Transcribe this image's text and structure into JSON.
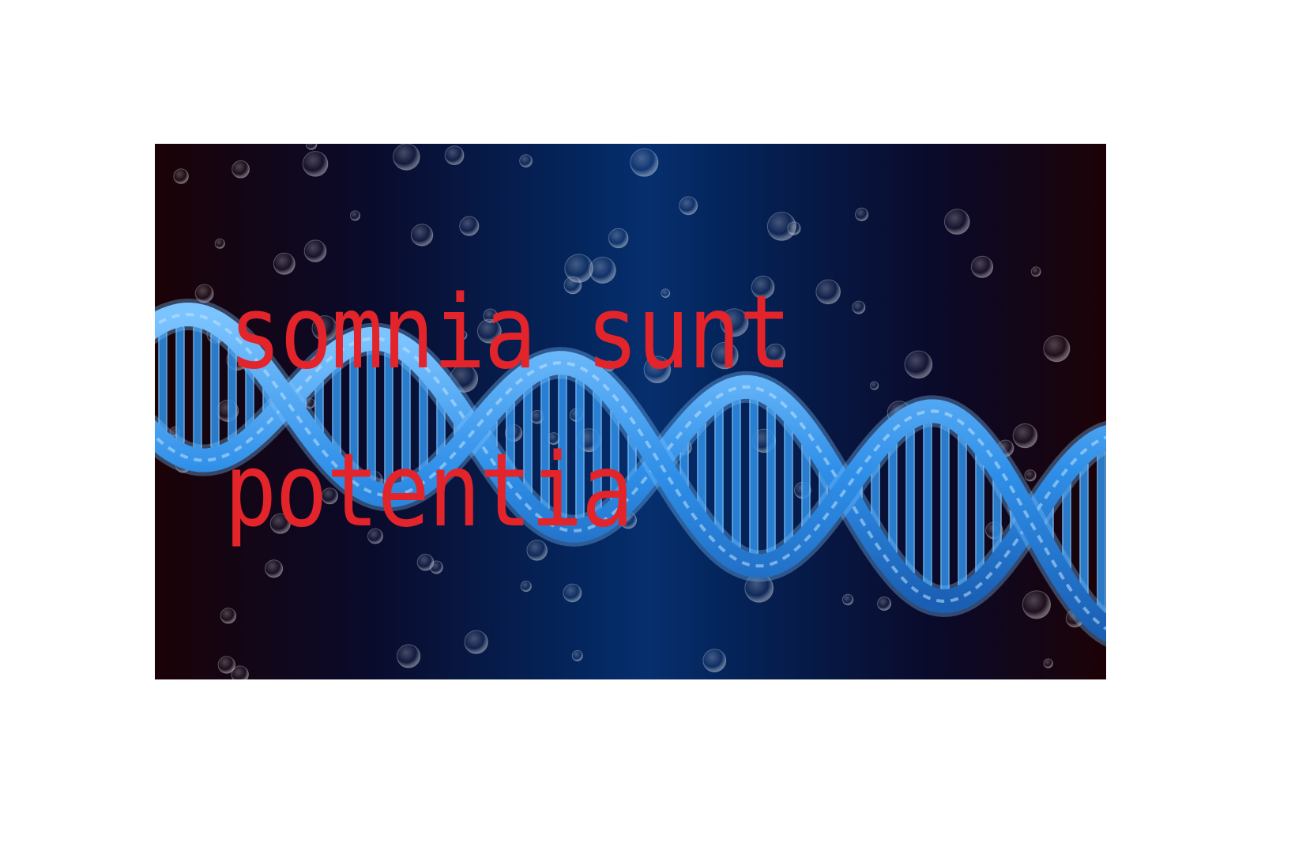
{
  "caption": {
    "line1": "somnia sunt",
    "line2": "potentia"
  },
  "colors": {
    "caption": "#e3242b",
    "helix": "#2f8fe8",
    "helix_highlight": "#7cc4ff",
    "background_center": "#062f6e",
    "background_edge": "#1a0206",
    "page": "#ffffff"
  },
  "scene": {
    "subject": "dna-double-helix",
    "decoration": "floating-bubbles"
  }
}
